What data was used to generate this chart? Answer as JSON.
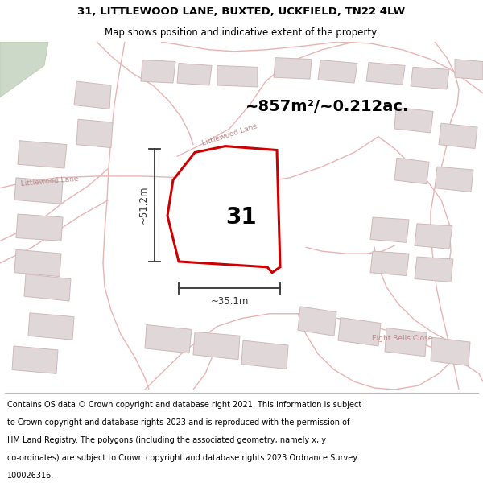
{
  "title_line1": "31, LITTLEWOOD LANE, BUXTED, UCKFIELD, TN22 4LW",
  "title_line2": "Map shows position and indicative extent of the property.",
  "area_text": "~857m²/~0.212ac.",
  "label_number": "31",
  "dim_vertical": "~51.2m",
  "dim_horizontal": "~35.1m",
  "footer_lines": [
    "Contains OS data © Crown copyright and database right 2021. This information is subject",
    "to Crown copyright and database rights 2023 and is reproduced with the permission of",
    "HM Land Registry. The polygons (including the associated geometry, namely x, y",
    "co-ordinates) are subject to Crown copyright and database rights 2023 Ordnance Survey",
    "100026316."
  ],
  "bg_color": "#f2eeee",
  "map_bg": "#f2eeee",
  "road_color": "#e8b4b4",
  "road_lw": 1.2,
  "building_color": "#e0d8d8",
  "building_edge": "#d0b8b8",
  "plot_edge": "#cc0000",
  "plot_fill": "#ffffff",
  "green_color": "#cdd9c8",
  "street_label_color": "#b88888",
  "title_color": "#000000",
  "footer_color": "#000000",
  "dim_color": "#333333",
  "area_color": "#000000",
  "label_color": "#000000",
  "title_fontsize": 9.5,
  "subtitle_fontsize": 8.5,
  "area_fontsize": 14,
  "label_fontsize": 20,
  "dim_fontsize": 8.5,
  "street_fontsize": 6.5,
  "footer_fontsize": 7.0
}
